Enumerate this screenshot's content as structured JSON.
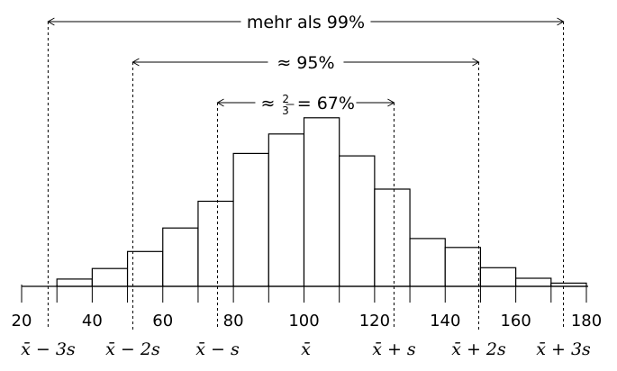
{
  "chart_data": {
    "type": "bar",
    "title": "",
    "xlabel": "",
    "ylabel": "",
    "bin_edges": [
      30,
      40,
      50,
      60,
      70,
      80,
      90,
      100,
      110,
      120,
      130,
      140,
      150,
      160,
      170,
      180
    ],
    "values": [
      0.9,
      2.2,
      4.3,
      7.2,
      10.5,
      16.4,
      18.8,
      20.8,
      16.1,
      12.0,
      5.9,
      4.8,
      2.3,
      1.0,
      0.4
    ],
    "xlim": [
      20,
      180
    ],
    "ylim": [
      0,
      22
    ],
    "xticks": [
      20,
      40,
      60,
      80,
      100,
      120,
      140,
      160,
      180
    ],
    "xtick_labels": [
      "20",
      "40",
      "60",
      "80",
      "100",
      "120",
      "140",
      "160",
      "180"
    ],
    "sigma_positions": [
      27.5,
      51.5,
      75.5,
      125.5,
      149.5,
      173.5
    ],
    "sigma_labels": [
      {
        "text": "x̄ − 3s",
        "x": 27.5
      },
      {
        "text": "x̄ − 2s",
        "x": 51.5
      },
      {
        "text": "x̄ − s",
        "x": 75.5
      },
      {
        "text": "x̄",
        "x": 100.5
      },
      {
        "text": "x̄ + s",
        "x": 125.5
      },
      {
        "text": "x̄ + 2s",
        "x": 149.5
      },
      {
        "text": "x̄ + 3s",
        "x": 173.5
      }
    ],
    "intervals": [
      {
        "label": "mehr als 99%",
        "from": 27.5,
        "to": 173.5
      },
      {
        "label": "≈ 95%",
        "from": 51.5,
        "to": 149.5
      },
      {
        "label": "≈ 2/3 = 67%",
        "from": 75.5,
        "to": 125.5
      }
    ]
  }
}
